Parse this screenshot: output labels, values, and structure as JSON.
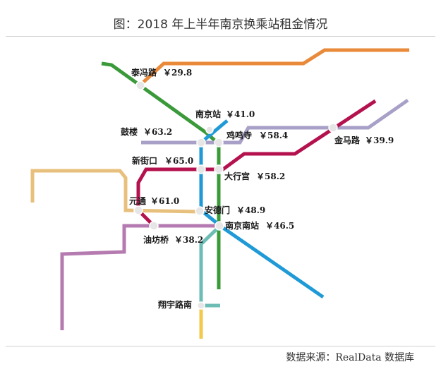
{
  "header": {
    "title": "图：2018 年上半年南京换乘站租金情况"
  },
  "footer": {
    "source": "数据来源：RealData 数据库"
  },
  "lines": {
    "line1": {
      "color": "#1f9ad6"
    },
    "line2": {
      "color": "#b4124e"
    },
    "line3": {
      "color": "#3a9a3a"
    },
    "line4": {
      "color": "#a9a0c8"
    },
    "line10": {
      "color": "#e8c07d"
    },
    "line_s1": {
      "color": "#6dbdb5"
    },
    "line_s3": {
      "color": "#b57bb0"
    },
    "line_s8": {
      "color": "#e98a3a"
    },
    "line_s9": {
      "color": "#f2c94c"
    }
  },
  "stations": [
    {
      "id": "taifeng",
      "name": "泰冯路",
      "price": "￥29.8"
    },
    {
      "id": "nanjing",
      "name": "南京站",
      "price": "￥41.0"
    },
    {
      "id": "gulou",
      "name": "鼓楼",
      "price": "￥63.2"
    },
    {
      "id": "jimingsi",
      "name": "鸡鸣寺",
      "price": "￥58.4"
    },
    {
      "id": "jinmalu",
      "name": "金马路",
      "price": "￥39.9"
    },
    {
      "id": "xinjiekou",
      "name": "新街口",
      "price": "￥65.0"
    },
    {
      "id": "daxinggong",
      "name": "大行宫",
      "price": "￥58.2"
    },
    {
      "id": "yuantong",
      "name": "元通",
      "price": "￥61.0"
    },
    {
      "id": "andemen",
      "name": "安德门",
      "price": "￥48.9"
    },
    {
      "id": "nanjingnan",
      "name": "南京南站",
      "price": "￥46.5"
    },
    {
      "id": "youfangqiao",
      "name": "油坊桥",
      "price": "￥38.2"
    },
    {
      "id": "zhiyulunan",
      "name": "翔宇路南",
      "price": ""
    }
  ]
}
